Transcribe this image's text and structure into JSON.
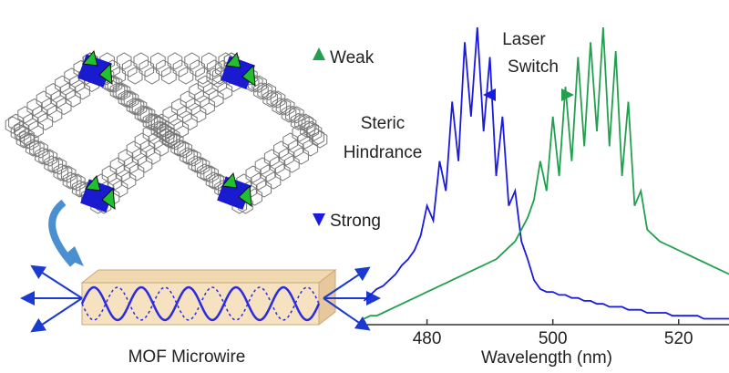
{
  "labels": {
    "weak": "Weak",
    "steric": [
      "Steric",
      "Hindrance"
    ],
    "strong": "Strong",
    "laser_switch": [
      "Laser",
      "Switch"
    ],
    "mof_microwire": "MOF Microwire"
  },
  "chart_data": {
    "type": "line",
    "xlabel": "Wavelength (nm)",
    "x": [
      470,
      471,
      472,
      473,
      474,
      475,
      476,
      477,
      478,
      479,
      480,
      481,
      482,
      483,
      484,
      485,
      486,
      487,
      488,
      489,
      490,
      491,
      492,
      493,
      494,
      495,
      496,
      497,
      498,
      499,
      500,
      501,
      502,
      503,
      504,
      505,
      506,
      507,
      508,
      509,
      510,
      511,
      512,
      513,
      514,
      515,
      516,
      517,
      518,
      519,
      520,
      521,
      522,
      523,
      524,
      525,
      526,
      527,
      528
    ],
    "xlim": [
      470.5,
      528
    ],
    "xticks": [
      480,
      500,
      520
    ],
    "ylim": [
      0,
      100
    ],
    "series": [
      {
        "color": "#1a1ae0",
        "values": [
          8,
          10,
          12,
          13,
          15,
          17,
          20,
          22,
          25,
          30,
          40,
          35,
          55,
          45,
          75,
          55,
          95,
          70,
          100,
          65,
          90,
          50,
          70,
          40,
          45,
          28,
          22,
          15,
          12,
          11,
          11,
          10,
          10,
          9,
          9,
          8,
          8,
          7,
          7,
          6,
          6,
          6,
          5,
          5,
          5,
          4,
          4,
          4,
          4,
          3,
          3,
          3,
          3,
          3,
          2,
          2,
          2,
          2,
          2
        ]
      },
      {
        "color": "#22a050",
        "values": [
          2,
          3,
          3,
          4,
          5,
          6,
          7,
          8,
          9,
          10,
          11,
          12,
          13,
          14,
          15,
          16,
          17,
          18,
          19,
          20,
          21,
          22,
          24,
          26,
          28,
          32,
          36,
          42,
          55,
          45,
          70,
          50,
          80,
          55,
          90,
          60,
          95,
          65,
          100,
          60,
          92,
          50,
          75,
          40,
          45,
          32,
          30,
          28,
          27,
          26,
          25,
          24,
          23,
          22,
          21,
          20,
          19,
          18,
          17
        ]
      }
    ]
  }
}
